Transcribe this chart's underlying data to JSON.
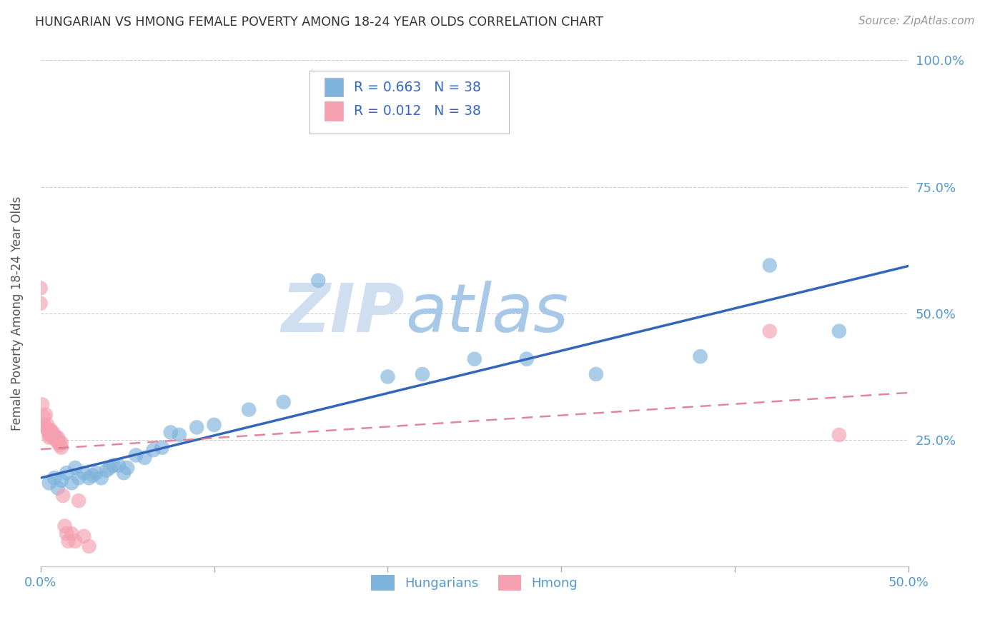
{
  "title": "HUNGARIAN VS HMONG FEMALE POVERTY AMONG 18-24 YEAR OLDS CORRELATION CHART",
  "source": "Source: ZipAtlas.com",
  "ylabel": "Female Poverty Among 18-24 Year Olds",
  "xlim": [
    0.0,
    0.5
  ],
  "ylim": [
    0.0,
    1.0
  ],
  "xticks": [
    0.0,
    0.1,
    0.2,
    0.3,
    0.4,
    0.5
  ],
  "xtick_labels": [
    "0.0%",
    "",
    "",
    "",
    "",
    "50.0%"
  ],
  "yticks": [
    0.0,
    0.25,
    0.5,
    0.75,
    1.0
  ],
  "ytick_labels": [
    "",
    "25.0%",
    "50.0%",
    "75.0%",
    "100.0%"
  ],
  "legend_labels": [
    "Hungarians",
    "Hmong"
  ],
  "blue_R": "R = 0.663",
  "blue_N": "N = 38",
  "pink_R": "R = 0.012",
  "pink_N": "N = 38",
  "blue_color": "#7EB3DC",
  "pink_color": "#F4A0B0",
  "blue_line_color": "#3366BB",
  "pink_line_color": "#E07090",
  "watermark_zip": "ZIP",
  "watermark_atlas": "atlas",
  "watermark_color_zip": "#D0DFF0",
  "watermark_color_atlas": "#A8C8E8",
  "blue_scatter_x": [
    0.005,
    0.008,
    0.01,
    0.012,
    0.015,
    0.018,
    0.02,
    0.022,
    0.025,
    0.028,
    0.03,
    0.032,
    0.035,
    0.038,
    0.04,
    0.042,
    0.045,
    0.048,
    0.05,
    0.055,
    0.06,
    0.065,
    0.07,
    0.075,
    0.08,
    0.09,
    0.1,
    0.12,
    0.14,
    0.16,
    0.2,
    0.22,
    0.25,
    0.28,
    0.32,
    0.38,
    0.42,
    0.46
  ],
  "blue_scatter_y": [
    0.165,
    0.175,
    0.155,
    0.17,
    0.185,
    0.165,
    0.195,
    0.175,
    0.185,
    0.175,
    0.18,
    0.185,
    0.175,
    0.19,
    0.195,
    0.2,
    0.2,
    0.185,
    0.195,
    0.22,
    0.215,
    0.23,
    0.235,
    0.265,
    0.26,
    0.275,
    0.28,
    0.31,
    0.325,
    0.565,
    0.375,
    0.38,
    0.41,
    0.41,
    0.38,
    0.415,
    0.595,
    0.465
  ],
  "pink_scatter_x": [
    0.0,
    0.0,
    0.001,
    0.002,
    0.002,
    0.003,
    0.003,
    0.004,
    0.004,
    0.005,
    0.005,
    0.005,
    0.006,
    0.006,
    0.006,
    0.007,
    0.007,
    0.008,
    0.008,
    0.009,
    0.009,
    0.01,
    0.01,
    0.011,
    0.011,
    0.012,
    0.012,
    0.013,
    0.014,
    0.015,
    0.016,
    0.018,
    0.02,
    0.022,
    0.025,
    0.028,
    0.42,
    0.46
  ],
  "pink_scatter_y": [
    0.55,
    0.52,
    0.32,
    0.295,
    0.28,
    0.3,
    0.275,
    0.28,
    0.27,
    0.265,
    0.26,
    0.255,
    0.27,
    0.265,
    0.26,
    0.265,
    0.255,
    0.26,
    0.255,
    0.255,
    0.25,
    0.255,
    0.245,
    0.245,
    0.24,
    0.245,
    0.235,
    0.14,
    0.08,
    0.065,
    0.05,
    0.065,
    0.05,
    0.13,
    0.06,
    0.04,
    0.465,
    0.26
  ]
}
